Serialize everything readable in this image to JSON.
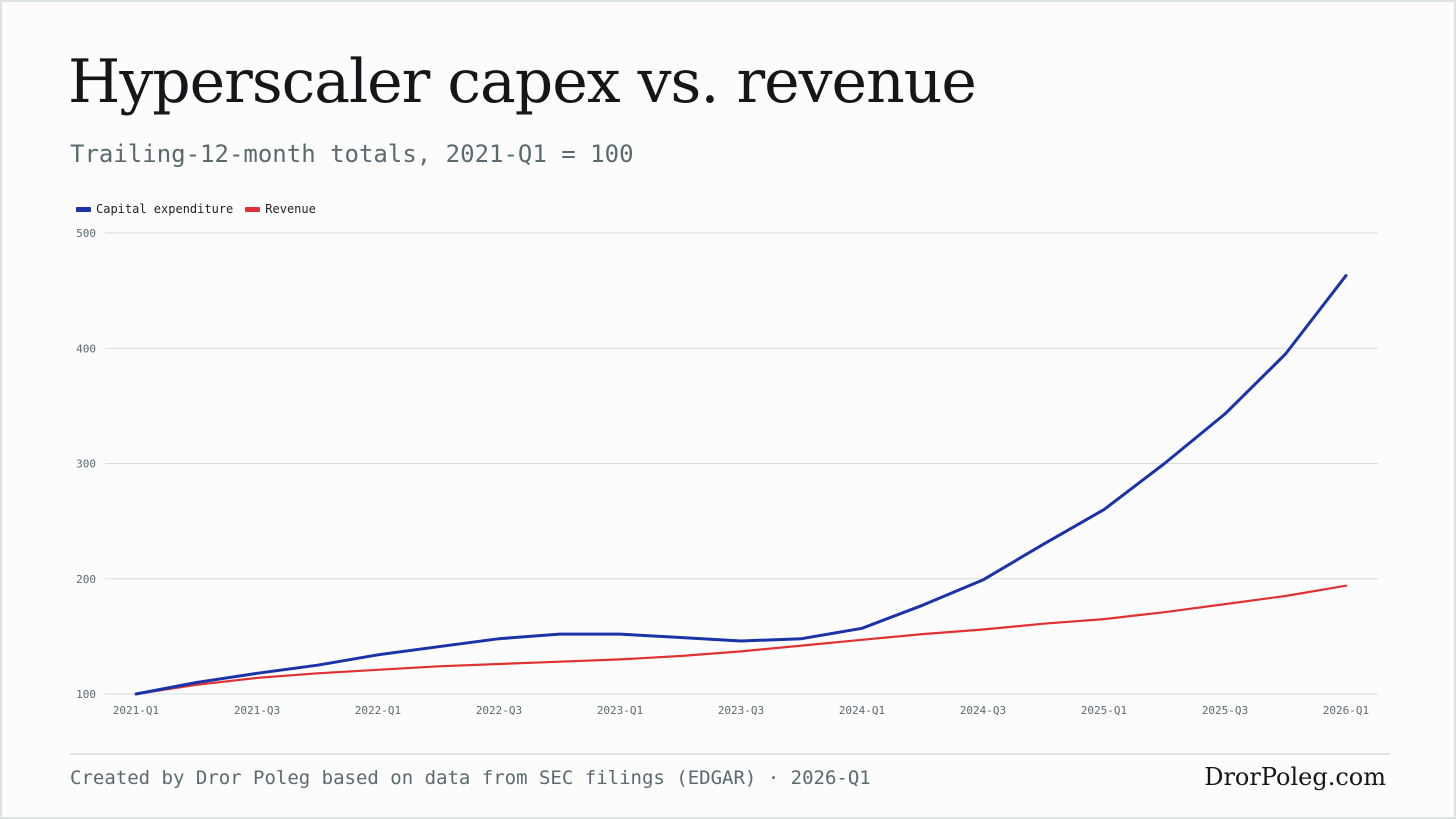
{
  "title": "Hyperscaler capex vs. revenue",
  "subtitle": "Trailing-12-month totals, 2021-Q1 = 100",
  "footer": {
    "credit": "Created by Dror Poleg based on data from SEC filings (EDGAR) · 2026-Q1",
    "brand": "DrorPoleg.com"
  },
  "chart_data": {
    "type": "line",
    "x": [
      "2021-Q1",
      "2021-Q2",
      "2021-Q3",
      "2021-Q4",
      "2022-Q1",
      "2022-Q2",
      "2022-Q3",
      "2022-Q4",
      "2023-Q1",
      "2023-Q2",
      "2023-Q3",
      "2023-Q4",
      "2024-Q1",
      "2024-Q2",
      "2024-Q3",
      "2024-Q4",
      "2025-Q1",
      "2025-Q2",
      "2025-Q3",
      "2025-Q4",
      "2026-Q1"
    ],
    "x_tick_labels": [
      "2021-Q1",
      "2021-Q3",
      "2022-Q1",
      "2022-Q3",
      "2023-Q1",
      "2023-Q3",
      "2024-Q1",
      "2024-Q3",
      "2025-Q1",
      "2025-Q3",
      "2026-Q1"
    ],
    "y_ticks": [
      100,
      200,
      300,
      400,
      500
    ],
    "ylim": [
      100,
      500
    ],
    "grid": true,
    "legend_position": "top-left",
    "series": [
      {
        "name": "Capital expenditure",
        "color": "#1a33a8",
        "values": [
          100,
          110,
          118,
          125,
          134,
          141,
          148,
          152,
          152,
          149,
          146,
          148,
          157,
          177,
          199,
          230,
          260,
          300,
          343,
          395,
          463
        ]
      },
      {
        "name": "Revenue",
        "color": "#e03232",
        "values": [
          100,
          108,
          114,
          118,
          121,
          124,
          126,
          128,
          130,
          133,
          137,
          142,
          147,
          152,
          156,
          161,
          165,
          171,
          178,
          185,
          194
        ]
      }
    ]
  }
}
